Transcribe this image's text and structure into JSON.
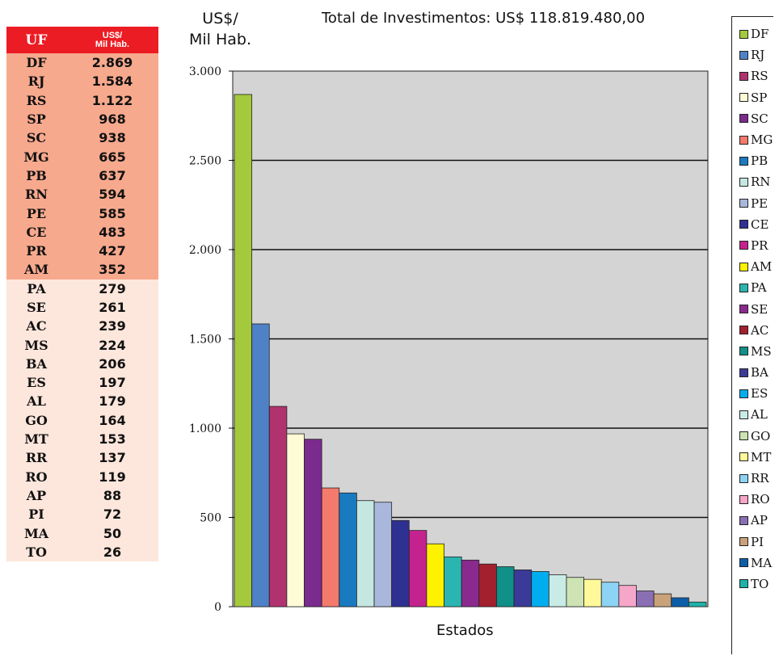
{
  "table": {
    "header_uf": "UF",
    "header_value_line1": "US$/",
    "header_value_line2": "Mil Hab.",
    "rows": [
      {
        "uf": "DF",
        "value": "2.869"
      },
      {
        "uf": "RJ",
        "value": "1.584"
      },
      {
        "uf": "RS",
        "value": "1.122"
      },
      {
        "uf": "SP",
        "value": "968"
      },
      {
        "uf": "SC",
        "value": "938"
      },
      {
        "uf": "MG",
        "value": "665"
      },
      {
        "uf": "PB",
        "value": "637"
      },
      {
        "uf": "RN",
        "value": "594"
      },
      {
        "uf": "PE",
        "value": "585"
      },
      {
        "uf": "CE",
        "value": "483"
      },
      {
        "uf": "PR",
        "value": "427"
      },
      {
        "uf": "AM",
        "value": "352"
      },
      {
        "uf": "PA",
        "value": "279"
      },
      {
        "uf": "SE",
        "value": "261"
      },
      {
        "uf": "AC",
        "value": "239"
      },
      {
        "uf": "MS",
        "value": "224"
      },
      {
        "uf": "BA",
        "value": "206"
      },
      {
        "uf": "ES",
        "value": "197"
      },
      {
        "uf": "AL",
        "value": "179"
      },
      {
        "uf": "GO",
        "value": "164"
      },
      {
        "uf": "MT",
        "value": "153"
      },
      {
        "uf": "RR",
        "value": "137"
      },
      {
        "uf": "RO",
        "value": "119"
      },
      {
        "uf": "AP",
        "value": "88"
      },
      {
        "uf": "PI",
        "value": "72"
      },
      {
        "uf": "MA",
        "value": "50"
      },
      {
        "uf": "TO",
        "value": "26"
      }
    ],
    "highlight_count": 12,
    "colors": {
      "header": "#ec1c24",
      "top_rows": "#f7a98d",
      "other_rows": "#fde6dc"
    }
  },
  "chart_data": {
    "type": "bar",
    "title": "Total de Investimentos: US$ 118.819.480,00",
    "ylabel_line1": "US$/",
    "ylabel_line2": "Mil Hab.",
    "xlabel": "Estados",
    "ylim": [
      0,
      3000
    ],
    "yticks": [
      0,
      500,
      1000,
      1500,
      2000,
      2500,
      3000
    ],
    "ytick_labels": [
      "0",
      "500",
      "1.000",
      "1.500",
      "2.000",
      "2.500",
      "3.000"
    ],
    "grid": true,
    "plot_background": "#d4d4d4",
    "legend_position": "right",
    "categories": [
      "DF",
      "RJ",
      "RS",
      "SP",
      "SC",
      "MG",
      "PB",
      "RN",
      "PE",
      "CE",
      "PR",
      "AM",
      "PA",
      "SE",
      "AC",
      "MS",
      "BA",
      "ES",
      "AL",
      "GO",
      "MT",
      "RR",
      "RO",
      "AP",
      "PI",
      "MA",
      "TO"
    ],
    "values": [
      2869,
      1584,
      1122,
      968,
      938,
      665,
      637,
      594,
      585,
      483,
      427,
      352,
      279,
      261,
      239,
      224,
      206,
      197,
      179,
      164,
      153,
      137,
      119,
      88,
      72,
      50,
      26
    ],
    "colors": [
      "#a4c93c",
      "#4f81c7",
      "#b0336f",
      "#fffbd6",
      "#7b2a8e",
      "#f47a6b",
      "#1a7abf",
      "#c5e7e2",
      "#a9b7dc",
      "#2e3192",
      "#c4228e",
      "#fff200",
      "#2bb5b0",
      "#8b2a8e",
      "#a3202f",
      "#118f89",
      "#3b3a98",
      "#00aeef",
      "#c9ebe6",
      "#cde3b4",
      "#fff99a",
      "#8dd3f5",
      "#f6a6c8",
      "#8a6fb4",
      "#c9a27a",
      "#0d5ea8",
      "#1eb1a8"
    ]
  }
}
